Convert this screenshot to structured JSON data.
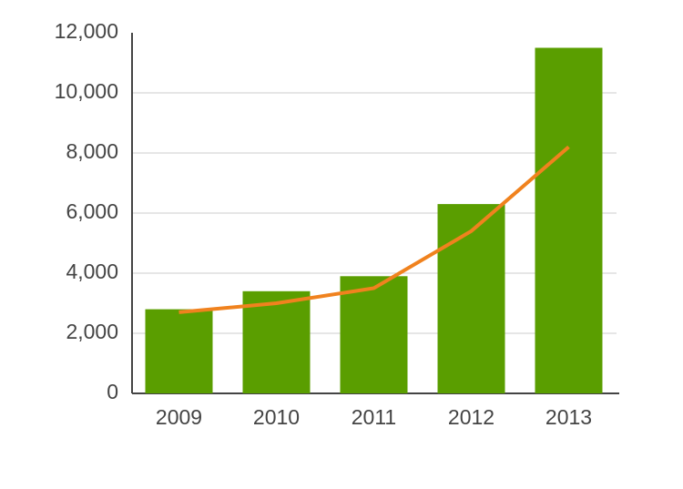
{
  "chart_data": {
    "type": "bar",
    "categories": [
      "2009",
      "2010",
      "2011",
      "2012",
      "2013"
    ],
    "series": [
      {
        "type": "bar",
        "color": "#5a9e00",
        "values": [
          2800,
          3400,
          3900,
          6300,
          11500
        ]
      },
      {
        "type": "line",
        "color": "#f0821e",
        "values": [
          2700,
          3000,
          3500,
          5400,
          8200
        ]
      }
    ],
    "ylim": [
      0,
      12000
    ],
    "yticks": [
      0,
      {
        "value": 2000,
        "label": "2,000"
      },
      {
        "value": 4000,
        "label": "4,000"
      },
      {
        "value": 6000,
        "label": "6,000"
      },
      {
        "value": 8000,
        "label": "8,000"
      },
      {
        "value": 10000,
        "label": "10,000"
      },
      {
        "value": 12000,
        "label": "12,000"
      }
    ],
    "grid": true
  }
}
